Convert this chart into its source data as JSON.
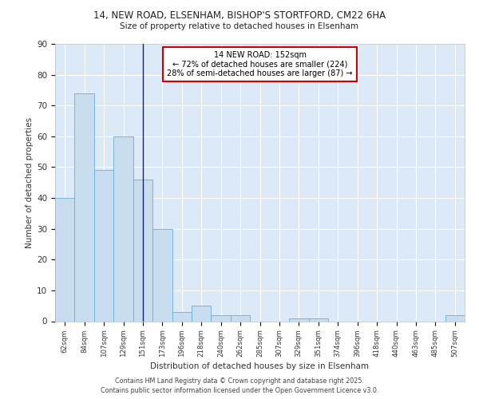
{
  "title1": "14, NEW ROAD, ELSENHAM, BISHOP'S STORTFORD, CM22 6HA",
  "title2": "Size of property relative to detached houses in Elsenham",
  "xlabel": "Distribution of detached houses by size in Elsenham",
  "ylabel": "Number of detached properties",
  "categories": [
    "62sqm",
    "84sqm",
    "107sqm",
    "129sqm",
    "151sqm",
    "173sqm",
    "196sqm",
    "218sqm",
    "240sqm",
    "262sqm",
    "285sqm",
    "307sqm",
    "329sqm",
    "351sqm",
    "374sqm",
    "396sqm",
    "418sqm",
    "440sqm",
    "463sqm",
    "485sqm",
    "507sqm"
  ],
  "values": [
    40,
    74,
    49,
    60,
    46,
    30,
    3,
    5,
    2,
    2,
    0,
    0,
    1,
    1,
    0,
    0,
    0,
    0,
    0,
    0,
    2
  ],
  "bar_color": "#c8ddf0",
  "bar_edge_color": "#6aaed6",
  "highlight_bin_index": 4,
  "highlight_line_color": "#1a1aaa",
  "annotation_title": "14 NEW ROAD: 152sqm",
  "annotation_line1": "← 72% of detached houses are smaller (224)",
  "annotation_line2": "28% of semi-detached houses are larger (87) →",
  "annotation_box_facecolor": "#ffffff",
  "annotation_box_edgecolor": "#cc0000",
  "ylim": [
    0,
    90
  ],
  "yticks": [
    0,
    10,
    20,
    30,
    40,
    50,
    60,
    70,
    80,
    90
  ],
  "plot_bg_color": "#dce9f7",
  "grid_color": "#ffffff",
  "footer1": "Contains HM Land Registry data © Crown copyright and database right 2025.",
  "footer2": "Contains public sector information licensed under the Open Government Licence v3.0."
}
